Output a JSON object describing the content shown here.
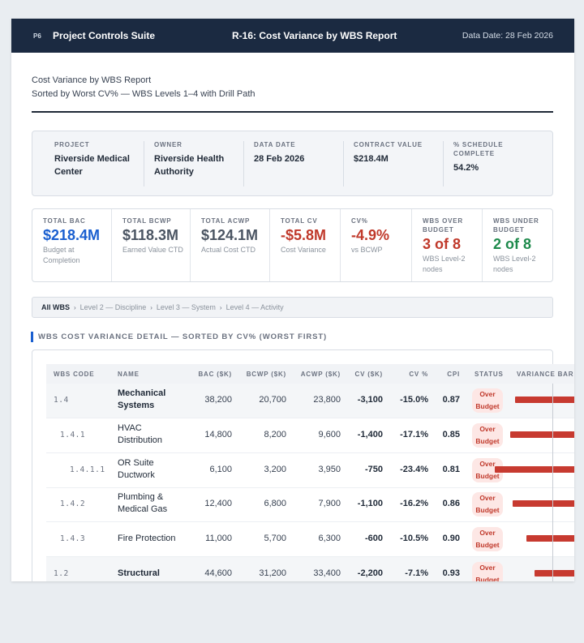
{
  "topbar": {
    "logo": "P6",
    "app_title": "Project Controls Suite",
    "report_title": "R-16: Cost Variance by WBS Report",
    "data_date": "Data Date: 28 Feb 2026"
  },
  "report": {
    "heading": "Cost Variance by WBS Report",
    "subheading": "Sorted by Worst CV% — WBS Levels 1–4 with Drill Path"
  },
  "project_info": [
    {
      "label": "PROJECT",
      "value": "Riverside Medical Center"
    },
    {
      "label": "OWNER",
      "value": "Riverside Health Authority"
    },
    {
      "label": "DATA DATE",
      "value": "28 Feb 2026"
    },
    {
      "label": "CONTRACT VALUE",
      "value": "$218.4M"
    },
    {
      "label": "% SCHEDULE COMPLETE",
      "value": "54.2%"
    }
  ],
  "kpis": [
    {
      "label": "TOTAL BAC",
      "value": "$218.4M",
      "sub": "Budget at Completion",
      "color": "#1a5fd0"
    },
    {
      "label": "TOTAL BCWP",
      "value": "$118.3M",
      "sub": "Earned Value CTD",
      "color": "#4b5563"
    },
    {
      "label": "TOTAL ACWP",
      "value": "$124.1M",
      "sub": "Actual Cost CTD",
      "color": "#4b5563"
    },
    {
      "label": "TOTAL CV",
      "value": "-$5.8M",
      "sub": "Cost Variance",
      "color": "#c0392b"
    },
    {
      "label": "CV%",
      "value": "-4.9%",
      "sub": "vs BCWP",
      "color": "#c0392b"
    },
    {
      "label": "WBS OVER BUDGET",
      "value": "3 of 8",
      "sub": "WBS Level-2 nodes",
      "color": "#c0392b"
    },
    {
      "label": "WBS UNDER BUDGET",
      "value": "2 of 8",
      "sub": "WBS Level-2 nodes",
      "color": "#1e8a4c"
    }
  ],
  "breadcrumb": {
    "items": [
      "All WBS",
      "Level 2 — Discipline",
      "Level 3 — System",
      "Level 4 — Activity"
    ],
    "separator": "›"
  },
  "section_title": "WBS COST VARIANCE DETAIL — SORTED BY CV% (WORST FIRST)",
  "table": {
    "columns": [
      "WBS CODE",
      "NAME",
      "BAC ($K)",
      "BCWP ($K)",
      "ACWP ($K)",
      "CV ($K)",
      "CV %",
      "CPI",
      "STATUS",
      "VARIANCE BAR"
    ],
    "rows": [
      {
        "code": "1.4",
        "name": "Mechanical Systems",
        "bac": "38,200",
        "bcwp": "20,700",
        "acwp": "23,800",
        "cv": "-3,100",
        "cvp": "-15.0%",
        "cpi": "0.87",
        "status": "Over Budget",
        "level": 2,
        "cvp_value": -15.0
      },
      {
        "code": "1.4.1",
        "name": "HVAC Distribution",
        "bac": "14,800",
        "bcwp": "8,200",
        "acwp": "9,600",
        "cv": "-1,400",
        "cvp": "-17.1%",
        "cpi": "0.85",
        "status": "Over Budget",
        "level": 3,
        "cvp_value": -17.1
      },
      {
        "code": "1.4.1.1",
        "name": "OR Suite Ductwork",
        "bac": "6,100",
        "bcwp": "3,200",
        "acwp": "3,950",
        "cv": "-750",
        "cvp": "-23.4%",
        "cpi": "0.81",
        "status": "Over Budget",
        "level": 4,
        "cvp_value": -23.4
      },
      {
        "code": "1.4.2",
        "name": "Plumbing & Medical Gas",
        "bac": "12,400",
        "bcwp": "6,800",
        "acwp": "7,900",
        "cv": "-1,100",
        "cvp": "-16.2%",
        "cpi": "0.86",
        "status": "Over Budget",
        "level": 3,
        "cvp_value": -16.2
      },
      {
        "code": "1.4.3",
        "name": "Fire Protection",
        "bac": "11,000",
        "bcwp": "5,700",
        "acwp": "6,300",
        "cv": "-600",
        "cvp": "-10.5%",
        "cpi": "0.90",
        "status": "Over Budget",
        "level": 3,
        "cvp_value": -10.5
      },
      {
        "code": "1.2",
        "name": "Structural",
        "bac": "44,600",
        "bcwp": "31,200",
        "acwp": "33,400",
        "cv": "-2,200",
        "cvp": "-7.1%",
        "cpi": "0.93",
        "status": "Over Budget",
        "level": 2,
        "cvp_value": -7.1
      }
    ]
  }
}
